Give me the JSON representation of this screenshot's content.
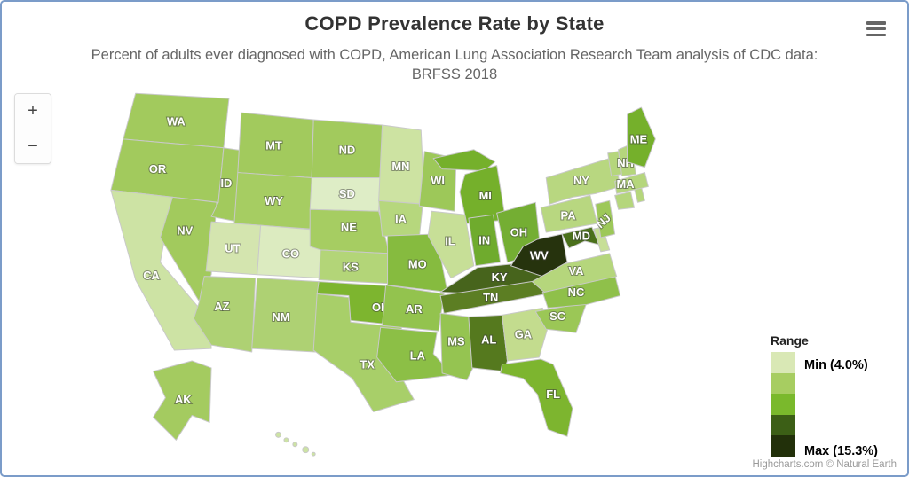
{
  "header": {
    "title": "COPD Prevalence Rate by State",
    "subtitle_line1": "Percent of adults ever diagnosed with COPD, American Lung Association Research Team analysis of CDC data:",
    "subtitle_line2": "BRFSS 2018"
  },
  "controls": {
    "zoom_in_label": "+",
    "zoom_out_label": "−",
    "menu_icon": "hamburger-icon"
  },
  "legend": {
    "title": "Range",
    "min_label": "Min (4.0%)",
    "max_label": "Max (15.3%)",
    "swatches": [
      "#d9e8b5",
      "#a7cd61",
      "#7ab92c",
      "#3c5f16",
      "#22300a"
    ]
  },
  "credits": "Highcharts.com © Natural Earth",
  "colors": {
    "frame_border": "#7b9cc9",
    "state_border": "#c9c9c9",
    "title_color": "#333333",
    "subtitle_color": "#666666",
    "credits_color": "#9a9a9a"
  },
  "chart_data": {
    "type": "choropleth_map",
    "title": "COPD Prevalence Rate by State",
    "region": "United States",
    "value_range": {
      "min_percent": 4.0,
      "max_percent": 15.3
    },
    "legend_position": "bottom-right",
    "states": [
      {
        "abbr": "WA",
        "color": "#a2ca5d",
        "label_shown": true
      },
      {
        "abbr": "OR",
        "color": "#a2ca5d",
        "label_shown": true
      },
      {
        "abbr": "CA",
        "color": "#cde3a4",
        "label_shown": true
      },
      {
        "abbr": "NV",
        "color": "#a2ca5d",
        "label_shown": true
      },
      {
        "abbr": "ID",
        "color": "#a2ca5d",
        "label_shown": true
      },
      {
        "abbr": "MT",
        "color": "#a2ca5d",
        "label_shown": true
      },
      {
        "abbr": "WY",
        "color": "#a6cd62",
        "label_shown": true
      },
      {
        "abbr": "UT",
        "color": "#d4e5af",
        "label_shown": true
      },
      {
        "abbr": "CO",
        "color": "#dcebc0",
        "label_shown": true
      },
      {
        "abbr": "AZ",
        "color": "#aed173",
        "label_shown": true
      },
      {
        "abbr": "NM",
        "color": "#aed173",
        "label_shown": true
      },
      {
        "abbr": "ND",
        "color": "#a2ca5d",
        "label_shown": true
      },
      {
        "abbr": "SD",
        "color": "#deedc6",
        "label_shown": true
      },
      {
        "abbr": "NE",
        "color": "#a6cd62",
        "label_shown": true
      },
      {
        "abbr": "KS",
        "color": "#b3d578",
        "label_shown": true
      },
      {
        "abbr": "OK",
        "color": "#7db52f",
        "label_shown": true
      },
      {
        "abbr": "TX",
        "color": "#a8cf69",
        "label_shown": true
      },
      {
        "abbr": "MN",
        "color": "#cde3a2",
        "label_shown": true
      },
      {
        "abbr": "IA",
        "color": "#b6d77d",
        "label_shown": true
      },
      {
        "abbr": "MO",
        "color": "#86bb3f",
        "label_shown": true
      },
      {
        "abbr": "AR",
        "color": "#93c34e",
        "label_shown": true
      },
      {
        "abbr": "LA",
        "color": "#8cbf46",
        "label_shown": true
      },
      {
        "abbr": "WI",
        "color": "#9dc859",
        "label_shown": true
      },
      {
        "abbr": "IL",
        "color": "#c7df97",
        "label_shown": true
      },
      {
        "abbr": "MI",
        "color": "#75b02b",
        "label_shown": true
      },
      {
        "abbr": "IN",
        "color": "#6fab2d",
        "label_shown": true
      },
      {
        "abbr": "OH",
        "color": "#74ae33",
        "label_shown": true
      },
      {
        "abbr": "KY",
        "color": "#47641c",
        "label_shown": true
      },
      {
        "abbr": "TN",
        "color": "#5c7e23",
        "label_shown": true
      },
      {
        "abbr": "WV",
        "color": "#26330d",
        "label_shown": true
      },
      {
        "abbr": "MS",
        "color": "#95c451",
        "label_shown": true
      },
      {
        "abbr": "AL",
        "color": "#55791e",
        "label_shown": true
      },
      {
        "abbr": "GA",
        "color": "#c3dc8e",
        "label_shown": true
      },
      {
        "abbr": "FL",
        "color": "#7db52f",
        "label_shown": true
      },
      {
        "abbr": "SC",
        "color": "#9bc756",
        "label_shown": true
      },
      {
        "abbr": "NC",
        "color": "#8fc04a",
        "label_shown": true
      },
      {
        "abbr": "VA",
        "color": "#b5d67c",
        "label_shown": true
      },
      {
        "abbr": "MD",
        "color": "#4a701b",
        "label_shown": true
      },
      {
        "abbr": "DE",
        "color": "#c7df97",
        "label_shown": false
      },
      {
        "abbr": "NJ",
        "color": "#9dc859",
        "label_shown": true
      },
      {
        "abbr": "PA",
        "color": "#b8d780",
        "label_shown": true
      },
      {
        "abbr": "NY",
        "color": "#b8d780",
        "label_shown": true
      },
      {
        "abbr": "CT",
        "color": "#b5d67c",
        "label_shown": false
      },
      {
        "abbr": "RI",
        "color": "#b5d67c",
        "label_shown": false
      },
      {
        "abbr": "MA",
        "color": "#b5d67c",
        "label_shown": true
      },
      {
        "abbr": "VT",
        "color": "#b5d67c",
        "label_shown": false
      },
      {
        "abbr": "NH",
        "color": "#b5d67c",
        "label_shown": true
      },
      {
        "abbr": "ME",
        "color": "#75b02b",
        "label_shown": true
      },
      {
        "abbr": "AK",
        "color": "#a4cb60",
        "label_shown": true
      },
      {
        "abbr": "HI",
        "color": "#cde3a4",
        "label_shown": false
      }
    ]
  }
}
